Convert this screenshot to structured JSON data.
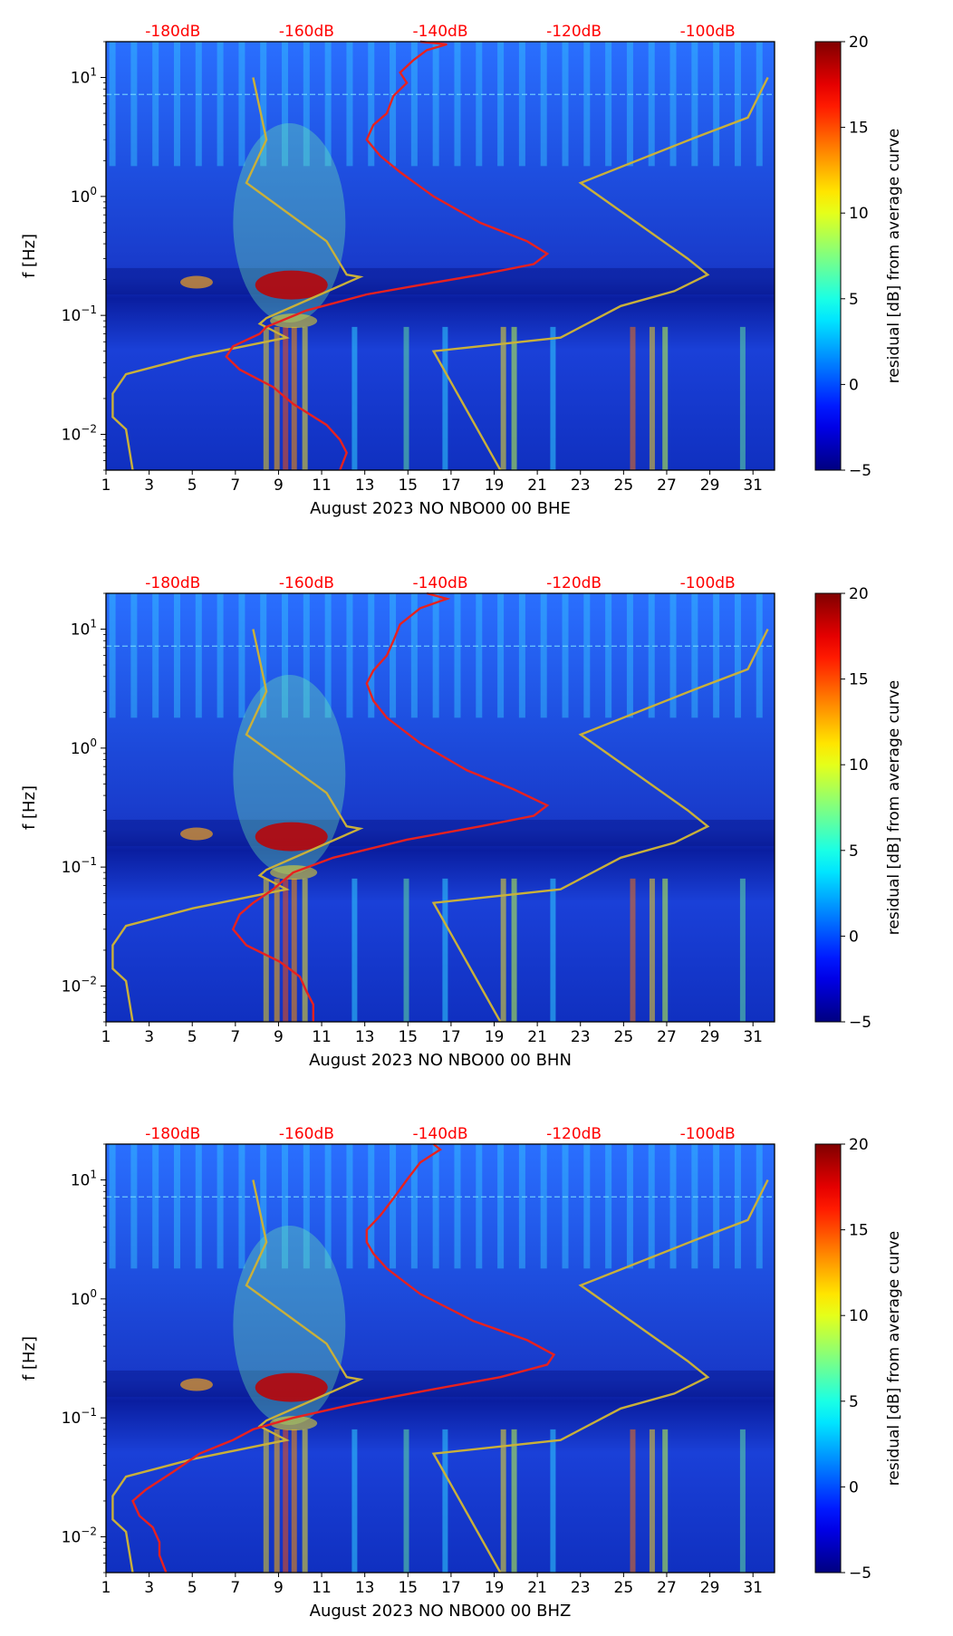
{
  "chart_data": [
    {
      "type": "heatmap",
      "channel": "BHE",
      "xlabel": "August 2023 NO NBO00 00 BHE",
      "ylabel": "f [Hz]",
      "x_ticks": [
        "1",
        "3",
        "5",
        "7",
        "9",
        "11",
        "13",
        "15",
        "17",
        "19",
        "21",
        "23",
        "25",
        "27",
        "29",
        "31"
      ],
      "y_ticks": [
        {
          "base": "10",
          "exp": "1",
          "value": 10
        },
        {
          "base": "10",
          "exp": "0",
          "value": 1
        },
        {
          "base": "10",
          "exp": "−1",
          "value": 0.1
        },
        {
          "base": "10",
          "exp": "−2",
          "value": 0.01
        }
      ],
      "xlim": [
        1,
        32
      ],
      "ylim_hz": [
        0.005,
        20
      ],
      "top_axis_label_color": "#ff0000",
      "top_axis_labels": [
        "-180dB",
        "-160dB",
        "-140dB",
        "-120dB",
        "-100dB"
      ],
      "top_axis_db_range": [
        -190,
        -90
      ],
      "colorbar": {
        "label": "residual [dB] from average curve",
        "range": [
          -5,
          20
        ],
        "ticks": [
          "20",
          "15",
          "10",
          "5",
          "0",
          "−5"
        ],
        "colormap": "jet"
      },
      "noise_model_curves": {
        "color": "#c9b03a",
        "low_model": [
          [
            -168,
            10
          ],
          [
            -166,
            3
          ],
          [
            -169,
            1.3
          ],
          [
            -157,
            0.42
          ],
          [
            -154,
            0.22
          ],
          [
            -152,
            0.21
          ],
          [
            -166,
            0.095
          ],
          [
            -167,
            0.085
          ],
          [
            -163,
            0.065
          ],
          [
            -177,
            0.045
          ],
          [
            -187,
            0.032
          ],
          [
            -189,
            0.022
          ],
          [
            -189,
            0.014
          ],
          [
            -187,
            0.011
          ],
          [
            -186,
            0.005
          ]
        ],
        "high_model": [
          [
            -91,
            10
          ],
          [
            -94,
            4.6
          ],
          [
            -102,
            3.1
          ],
          [
            -119,
            1.3
          ],
          [
            -103,
            0.3
          ],
          [
            -100,
            0.22
          ],
          [
            -105,
            0.16
          ],
          [
            -113,
            0.12
          ],
          [
            -122,
            0.065
          ],
          [
            -141,
            0.05
          ],
          [
            -131,
            0.005
          ]
        ]
      },
      "average_psd_curve": {
        "color": "#e8211f",
        "points": [
          [
            -143,
            20
          ],
          [
            -139,
            19
          ],
          [
            -142,
            17
          ],
          [
            -144,
            14
          ],
          [
            -146,
            11
          ],
          [
            -145,
            9
          ],
          [
            -147,
            7
          ],
          [
            -148,
            5
          ],
          [
            -150,
            4
          ],
          [
            -151,
            3
          ],
          [
            -149,
            2.2
          ],
          [
            -146,
            1.6
          ],
          [
            -141,
            1.0
          ],
          [
            -134,
            0.6
          ],
          [
            -127,
            0.42
          ],
          [
            -124,
            0.33
          ],
          [
            -126,
            0.27
          ],
          [
            -134,
            0.22
          ],
          [
            -143,
            0.18
          ],
          [
            -151,
            0.15
          ],
          [
            -160,
            0.11
          ],
          [
            -166,
            0.08
          ],
          [
            -167,
            0.07
          ],
          [
            -171,
            0.055
          ],
          [
            -172,
            0.045
          ],
          [
            -170,
            0.035
          ],
          [
            -165,
            0.025
          ],
          [
            -162,
            0.018
          ],
          [
            -157,
            0.012
          ],
          [
            -155,
            0.009
          ],
          [
            -154,
            0.007
          ],
          [
            -155,
            0.005
          ]
        ]
      }
    },
    {
      "type": "heatmap",
      "channel": "BHN",
      "xlabel": "August 2023 NO NBO00 00 BHN",
      "ylabel": "f [Hz]",
      "x_ticks": [
        "1",
        "3",
        "5",
        "7",
        "9",
        "11",
        "13",
        "15",
        "17",
        "19",
        "21",
        "23",
        "25",
        "27",
        "29",
        "31"
      ],
      "y_ticks": [
        {
          "base": "10",
          "exp": "1",
          "value": 10
        },
        {
          "base": "10",
          "exp": "0",
          "value": 1
        },
        {
          "base": "10",
          "exp": "−1",
          "value": 0.1
        },
        {
          "base": "10",
          "exp": "−2",
          "value": 0.01
        }
      ],
      "xlim": [
        1,
        32
      ],
      "ylim_hz": [
        0.005,
        20
      ],
      "top_axis_label_color": "#ff0000",
      "top_axis_labels": [
        "-180dB",
        "-160dB",
        "-140dB",
        "-120dB",
        "-100dB"
      ],
      "top_axis_db_range": [
        -190,
        -90
      ],
      "colorbar": {
        "label": "residual [dB] from average curve",
        "range": [
          -5,
          20
        ],
        "ticks": [
          "20",
          "15",
          "10",
          "5",
          "0",
          "−5"
        ],
        "colormap": "jet"
      },
      "noise_model_curves": {
        "color": "#c9b03a",
        "low_model": [
          [
            -168,
            10
          ],
          [
            -166,
            3
          ],
          [
            -169,
            1.3
          ],
          [
            -157,
            0.42
          ],
          [
            -154,
            0.22
          ],
          [
            -152,
            0.21
          ],
          [
            -166,
            0.095
          ],
          [
            -167,
            0.085
          ],
          [
            -163,
            0.065
          ],
          [
            -177,
            0.045
          ],
          [
            -187,
            0.032
          ],
          [
            -189,
            0.022
          ],
          [
            -189,
            0.014
          ],
          [
            -187,
            0.011
          ],
          [
            -186,
            0.005
          ]
        ],
        "high_model": [
          [
            -91,
            10
          ],
          [
            -94,
            4.6
          ],
          [
            -102,
            3.1
          ],
          [
            -119,
            1.3
          ],
          [
            -103,
            0.3
          ],
          [
            -100,
            0.22
          ],
          [
            -105,
            0.16
          ],
          [
            -113,
            0.12
          ],
          [
            -122,
            0.065
          ],
          [
            -141,
            0.05
          ],
          [
            -131,
            0.005
          ]
        ]
      },
      "average_psd_curve": {
        "color": "#e8211f",
        "points": [
          [
            -142,
            20
          ],
          [
            -139,
            18
          ],
          [
            -143,
            15
          ],
          [
            -146,
            11
          ],
          [
            -147,
            8
          ],
          [
            -148,
            6
          ],
          [
            -150,
            4.5
          ],
          [
            -151,
            3.5
          ],
          [
            -150,
            2.5
          ],
          [
            -148,
            1.8
          ],
          [
            -143,
            1.1
          ],
          [
            -136,
            0.65
          ],
          [
            -129,
            0.45
          ],
          [
            -124,
            0.33
          ],
          [
            -126,
            0.27
          ],
          [
            -134,
            0.22
          ],
          [
            -145,
            0.17
          ],
          [
            -156,
            0.12
          ],
          [
            -162,
            0.09
          ],
          [
            -165,
            0.065
          ],
          [
            -168,
            0.05
          ],
          [
            -170,
            0.04
          ],
          [
            -171,
            0.03
          ],
          [
            -169,
            0.022
          ],
          [
            -164,
            0.016
          ],
          [
            -161,
            0.012
          ],
          [
            -160,
            0.009
          ],
          [
            -159,
            0.007
          ],
          [
            -159,
            0.005
          ]
        ]
      }
    },
    {
      "type": "heatmap",
      "channel": "BHZ",
      "xlabel": "August 2023 NO NBO00 00 BHZ",
      "ylabel": "f [Hz]",
      "x_ticks": [
        "1",
        "3",
        "5",
        "7",
        "9",
        "11",
        "13",
        "15",
        "17",
        "19",
        "21",
        "23",
        "25",
        "27",
        "29",
        "31"
      ],
      "y_ticks": [
        {
          "base": "10",
          "exp": "1",
          "value": 10
        },
        {
          "base": "10",
          "exp": "0",
          "value": 1
        },
        {
          "base": "10",
          "exp": "−1",
          "value": 0.1
        },
        {
          "base": "10",
          "exp": "−2",
          "value": 0.01
        }
      ],
      "xlim": [
        1,
        32
      ],
      "ylim_hz": [
        0.005,
        20
      ],
      "top_axis_label_color": "#ff0000",
      "top_axis_labels": [
        "-180dB",
        "-160dB",
        "-140dB",
        "-120dB",
        "-100dB"
      ],
      "top_axis_db_range": [
        -190,
        -90
      ],
      "colorbar": {
        "label": "residual [dB] from average curve",
        "range": [
          -5,
          20
        ],
        "ticks": [
          "20",
          "15",
          "10",
          "5",
          "0",
          "−5"
        ],
        "colormap": "jet"
      },
      "noise_model_curves": {
        "color": "#c9b03a",
        "low_model": [
          [
            -168,
            10
          ],
          [
            -166,
            3
          ],
          [
            -169,
            1.3
          ],
          [
            -157,
            0.42
          ],
          [
            -154,
            0.22
          ],
          [
            -152,
            0.21
          ],
          [
            -166,
            0.095
          ],
          [
            -167,
            0.085
          ],
          [
            -163,
            0.065
          ],
          [
            -177,
            0.045
          ],
          [
            -187,
            0.032
          ],
          [
            -189,
            0.022
          ],
          [
            -189,
            0.014
          ],
          [
            -187,
            0.011
          ],
          [
            -186,
            0.005
          ]
        ],
        "high_model": [
          [
            -91,
            10
          ],
          [
            -94,
            4.6
          ],
          [
            -102,
            3.1
          ],
          [
            -119,
            1.3
          ],
          [
            -103,
            0.3
          ],
          [
            -100,
            0.22
          ],
          [
            -105,
            0.16
          ],
          [
            -113,
            0.12
          ],
          [
            -122,
            0.065
          ],
          [
            -141,
            0.05
          ],
          [
            -131,
            0.005
          ]
        ]
      },
      "average_psd_curve": {
        "color": "#e8211f",
        "points": [
          [
            -141,
            20
          ],
          [
            -140,
            18
          ],
          [
            -143,
            14
          ],
          [
            -145,
            10
          ],
          [
            -147,
            7
          ],
          [
            -149,
            5
          ],
          [
            -151,
            3.8
          ],
          [
            -151,
            3
          ],
          [
            -150,
            2.4
          ],
          [
            -148,
            1.8
          ],
          [
            -143,
            1.1
          ],
          [
            -135,
            0.65
          ],
          [
            -127,
            0.45
          ],
          [
            -123,
            0.34
          ],
          [
            -124,
            0.28
          ],
          [
            -131,
            0.22
          ],
          [
            -142,
            0.17
          ],
          [
            -153,
            0.13
          ],
          [
            -162,
            0.1
          ],
          [
            -168,
            0.08
          ],
          [
            -171,
            0.065
          ],
          [
            -176,
            0.05
          ],
          [
            -180,
            0.035
          ],
          [
            -184,
            0.025
          ],
          [
            -186,
            0.02
          ],
          [
            -185,
            0.015
          ],
          [
            -183,
            0.012
          ],
          [
            -182,
            0.009
          ],
          [
            -182,
            0.007
          ],
          [
            -181,
            0.005
          ]
        ]
      }
    }
  ]
}
